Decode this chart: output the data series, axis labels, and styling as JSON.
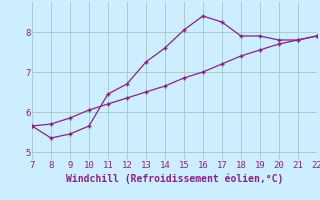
{
  "line1_x": [
    7,
    8,
    9,
    10,
    11,
    12,
    13,
    14,
    15,
    16,
    17,
    18,
    19,
    20,
    21,
    22
  ],
  "line1_y": [
    5.65,
    5.35,
    5.45,
    5.65,
    6.45,
    6.7,
    7.25,
    7.6,
    8.05,
    8.4,
    8.25,
    7.9,
    7.9,
    7.8,
    7.8,
    7.9
  ],
  "line2_x": [
    7,
    8,
    9,
    10,
    11,
    12,
    13,
    14,
    15,
    16,
    17,
    18,
    19,
    20,
    21,
    22
  ],
  "line2_y": [
    5.65,
    5.7,
    5.85,
    6.05,
    6.2,
    6.35,
    6.5,
    6.65,
    6.85,
    7.0,
    7.2,
    7.4,
    7.55,
    7.7,
    7.8,
    7.9
  ],
  "line_color": "#882288",
  "marker": "+",
  "bg_color": "#cceeff",
  "grid_color": "#aacccc",
  "xlabel": "Windchill (Refroidissement éolien,°C)",
  "xlim": [
    7,
    22
  ],
  "ylim": [
    4.8,
    8.75
  ],
  "yticks": [
    5,
    6,
    7,
    8
  ],
  "xticks": [
    7,
    8,
    9,
    10,
    11,
    12,
    13,
    14,
    15,
    16,
    17,
    18,
    19,
    20,
    21,
    22
  ],
  "tick_color": "#882288",
  "label_fontsize": 7,
  "tick_fontsize": 6.5
}
